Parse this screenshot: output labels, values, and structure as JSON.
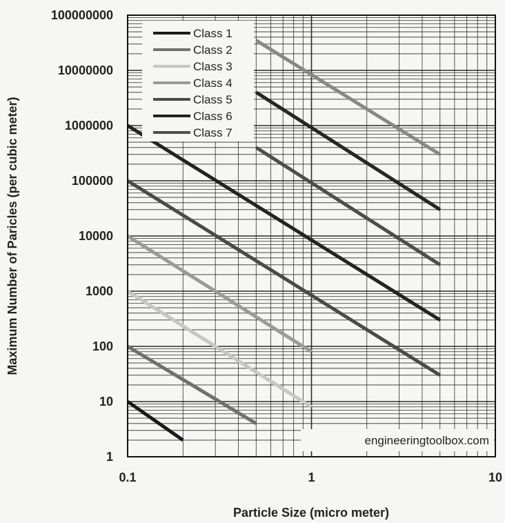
{
  "chart_data": {
    "type": "line",
    "xlabel": "Particle Size (micro meter)",
    "ylabel": "Maximum Number of Paricles (per cubic meter)",
    "x_scale": "log",
    "y_scale": "log",
    "xlim": [
      0.1,
      10
    ],
    "ylim": [
      1,
      100000000
    ],
    "x_ticks": [
      "0.1",
      "1",
      "10"
    ],
    "y_ticks": [
      "1",
      "10",
      "100",
      "1000",
      "10000",
      "100000",
      "1000000",
      "10000000",
      "100000000"
    ],
    "grid": true,
    "legend_position": "top-left",
    "series": [
      {
        "name": "Class 1",
        "color": "#1a1a1a",
        "x": [
          0.1,
          0.2
        ],
        "y": [
          10,
          2
        ]
      },
      {
        "name": "Class 2",
        "color": "#707070",
        "x": [
          0.1,
          0.5
        ],
        "y": [
          100,
          4
        ]
      },
      {
        "name": "Class 3",
        "color": "#c6c6c6",
        "x": [
          0.1,
          1.0
        ],
        "y": [
          1000,
          8
        ]
      },
      {
        "name": "Class 4",
        "color": "#9a9a9a",
        "x": [
          0.1,
          1.0
        ],
        "y": [
          10000,
          80
        ]
      },
      {
        "name": "Class 5",
        "color": "#4a4a4a",
        "x": [
          0.1,
          5.0
        ],
        "y": [
          100000,
          30
        ]
      },
      {
        "name": "Class 6",
        "color": "#232323",
        "x": [
          0.1,
          5.0
        ],
        "y": [
          1000000,
          300
        ]
      },
      {
        "name": "Class 7",
        "color": "#4e4e4e",
        "x": [
          0.5,
          5.0
        ],
        "y": [
          400000,
          3000
        ]
      },
      {
        "name": "",
        "color": "#262626",
        "x": [
          0.5,
          5.0
        ],
        "y": [
          4000000,
          30000
        ]
      },
      {
        "name": "",
        "color": "#888888",
        "x": [
          0.5,
          5.0
        ],
        "y": [
          35000000,
          300000
        ]
      }
    ]
  },
  "watermark": "engineeringtoolbox.com"
}
